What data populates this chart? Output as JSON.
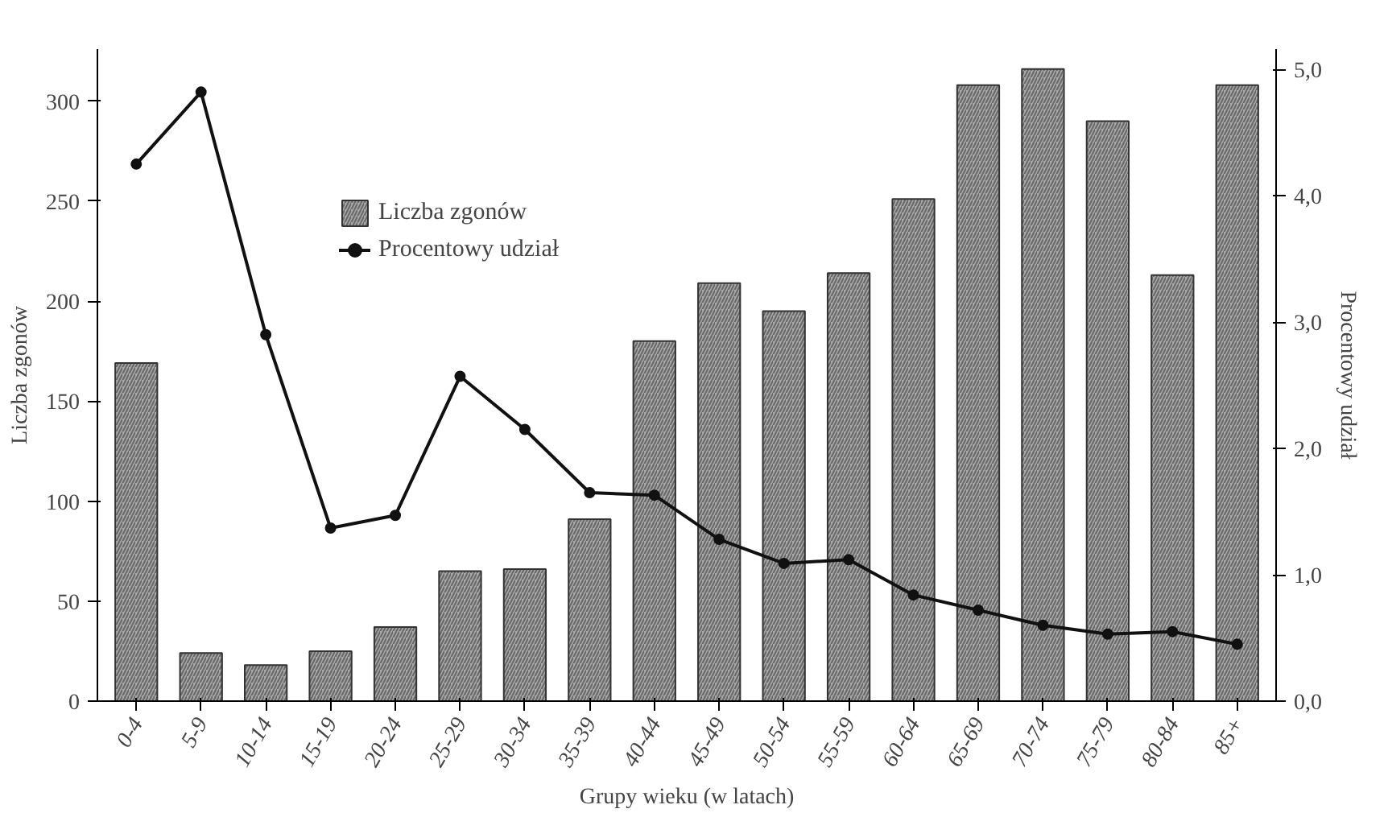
{
  "chart_data": {
    "type": "bar",
    "xlabel": "Grupy wieku (w latach)",
    "ylabel": "Liczba zgonów",
    "y2label": "Procentowy udział",
    "categories": [
      "0-4",
      "5-9",
      "10-14",
      "15-19",
      "20-24",
      "25-29",
      "30-34",
      "35-39",
      "40-44",
      "45-49",
      "50-54",
      "55-59",
      "60-64",
      "65-69",
      "70-74",
      "75-79",
      "80-84",
      "85+"
    ],
    "series": [
      {
        "name": "Liczba zgonów",
        "color": "#a8a8a8",
        "values": [
          169,
          24,
          18,
          25,
          37,
          65,
          66,
          91,
          180,
          209,
          195,
          214,
          251,
          308,
          316,
          290,
          213,
          308
        ]
      },
      {
        "name": "Procentowy udział",
        "type": "line",
        "axis": "y2",
        "color": "#111111",
        "values": [
          4.25,
          4.82,
          2.9,
          1.37,
          1.47,
          2.57,
          2.15,
          1.65,
          1.63,
          1.28,
          1.09,
          1.12,
          0.84,
          0.72,
          0.6,
          0.53,
          0.55,
          0.45
        ]
      }
    ],
    "ylim": [
      0,
      326
    ],
    "yticks": [
      0,
      50,
      100,
      150,
      200,
      250,
      300
    ],
    "y2lim": [
      0,
      5.16
    ],
    "y2ticks": [
      {
        "value": 0,
        "label": "0,0"
      },
      {
        "value": 1,
        "label": "1,0"
      },
      {
        "value": 2,
        "label": "2,0"
      },
      {
        "value": 3,
        "label": "3,0"
      },
      {
        "value": 4,
        "label": "4,0"
      },
      {
        "value": 5,
        "label": "5,0"
      }
    ],
    "legend": "top left",
    "marker": "circle",
    "line_style": "solid",
    "grid": false
  }
}
